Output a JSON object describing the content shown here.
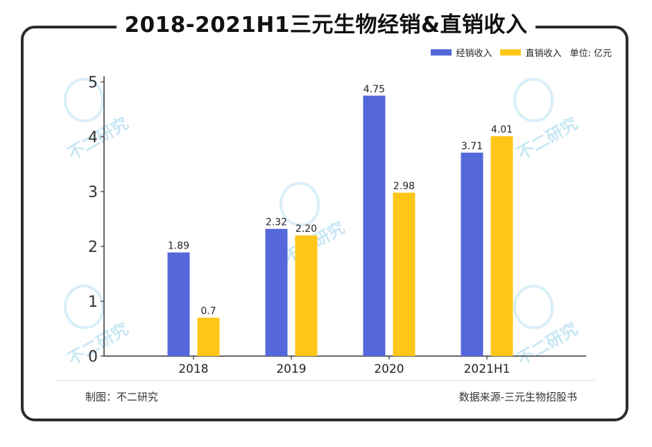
{
  "title": "2018-2021H1三元生物经销&直销收入",
  "legend": {
    "unit": "单位: 亿元"
  },
  "footer": {
    "credit": "制图：不二研究",
    "source": "数据来源-三元生物招股书"
  },
  "watermark": {
    "text": "不二研究"
  },
  "colors": {
    "blue": "#5468db",
    "yellow": "#ffc61a"
  },
  "chart_data": {
    "type": "bar",
    "categories": [
      "2018",
      "2019",
      "2020",
      "2021H1"
    ],
    "series": [
      {
        "name": "经销收入",
        "values": [
          1.89,
          2.32,
          4.75,
          3.71
        ],
        "labels": [
          "1.89",
          "2.32",
          "4.75",
          "3.71"
        ]
      },
      {
        "name": "直销收入",
        "values": [
          0.7,
          2.2,
          2.98,
          4.01
        ],
        "labels": [
          "0.7",
          "2.20",
          "2.98",
          "4.01"
        ]
      }
    ],
    "ylim": [
      0,
      5
    ],
    "yticks": [
      0,
      1,
      2,
      3,
      4,
      5
    ],
    "grid": false,
    "legend_position": "top-right"
  }
}
